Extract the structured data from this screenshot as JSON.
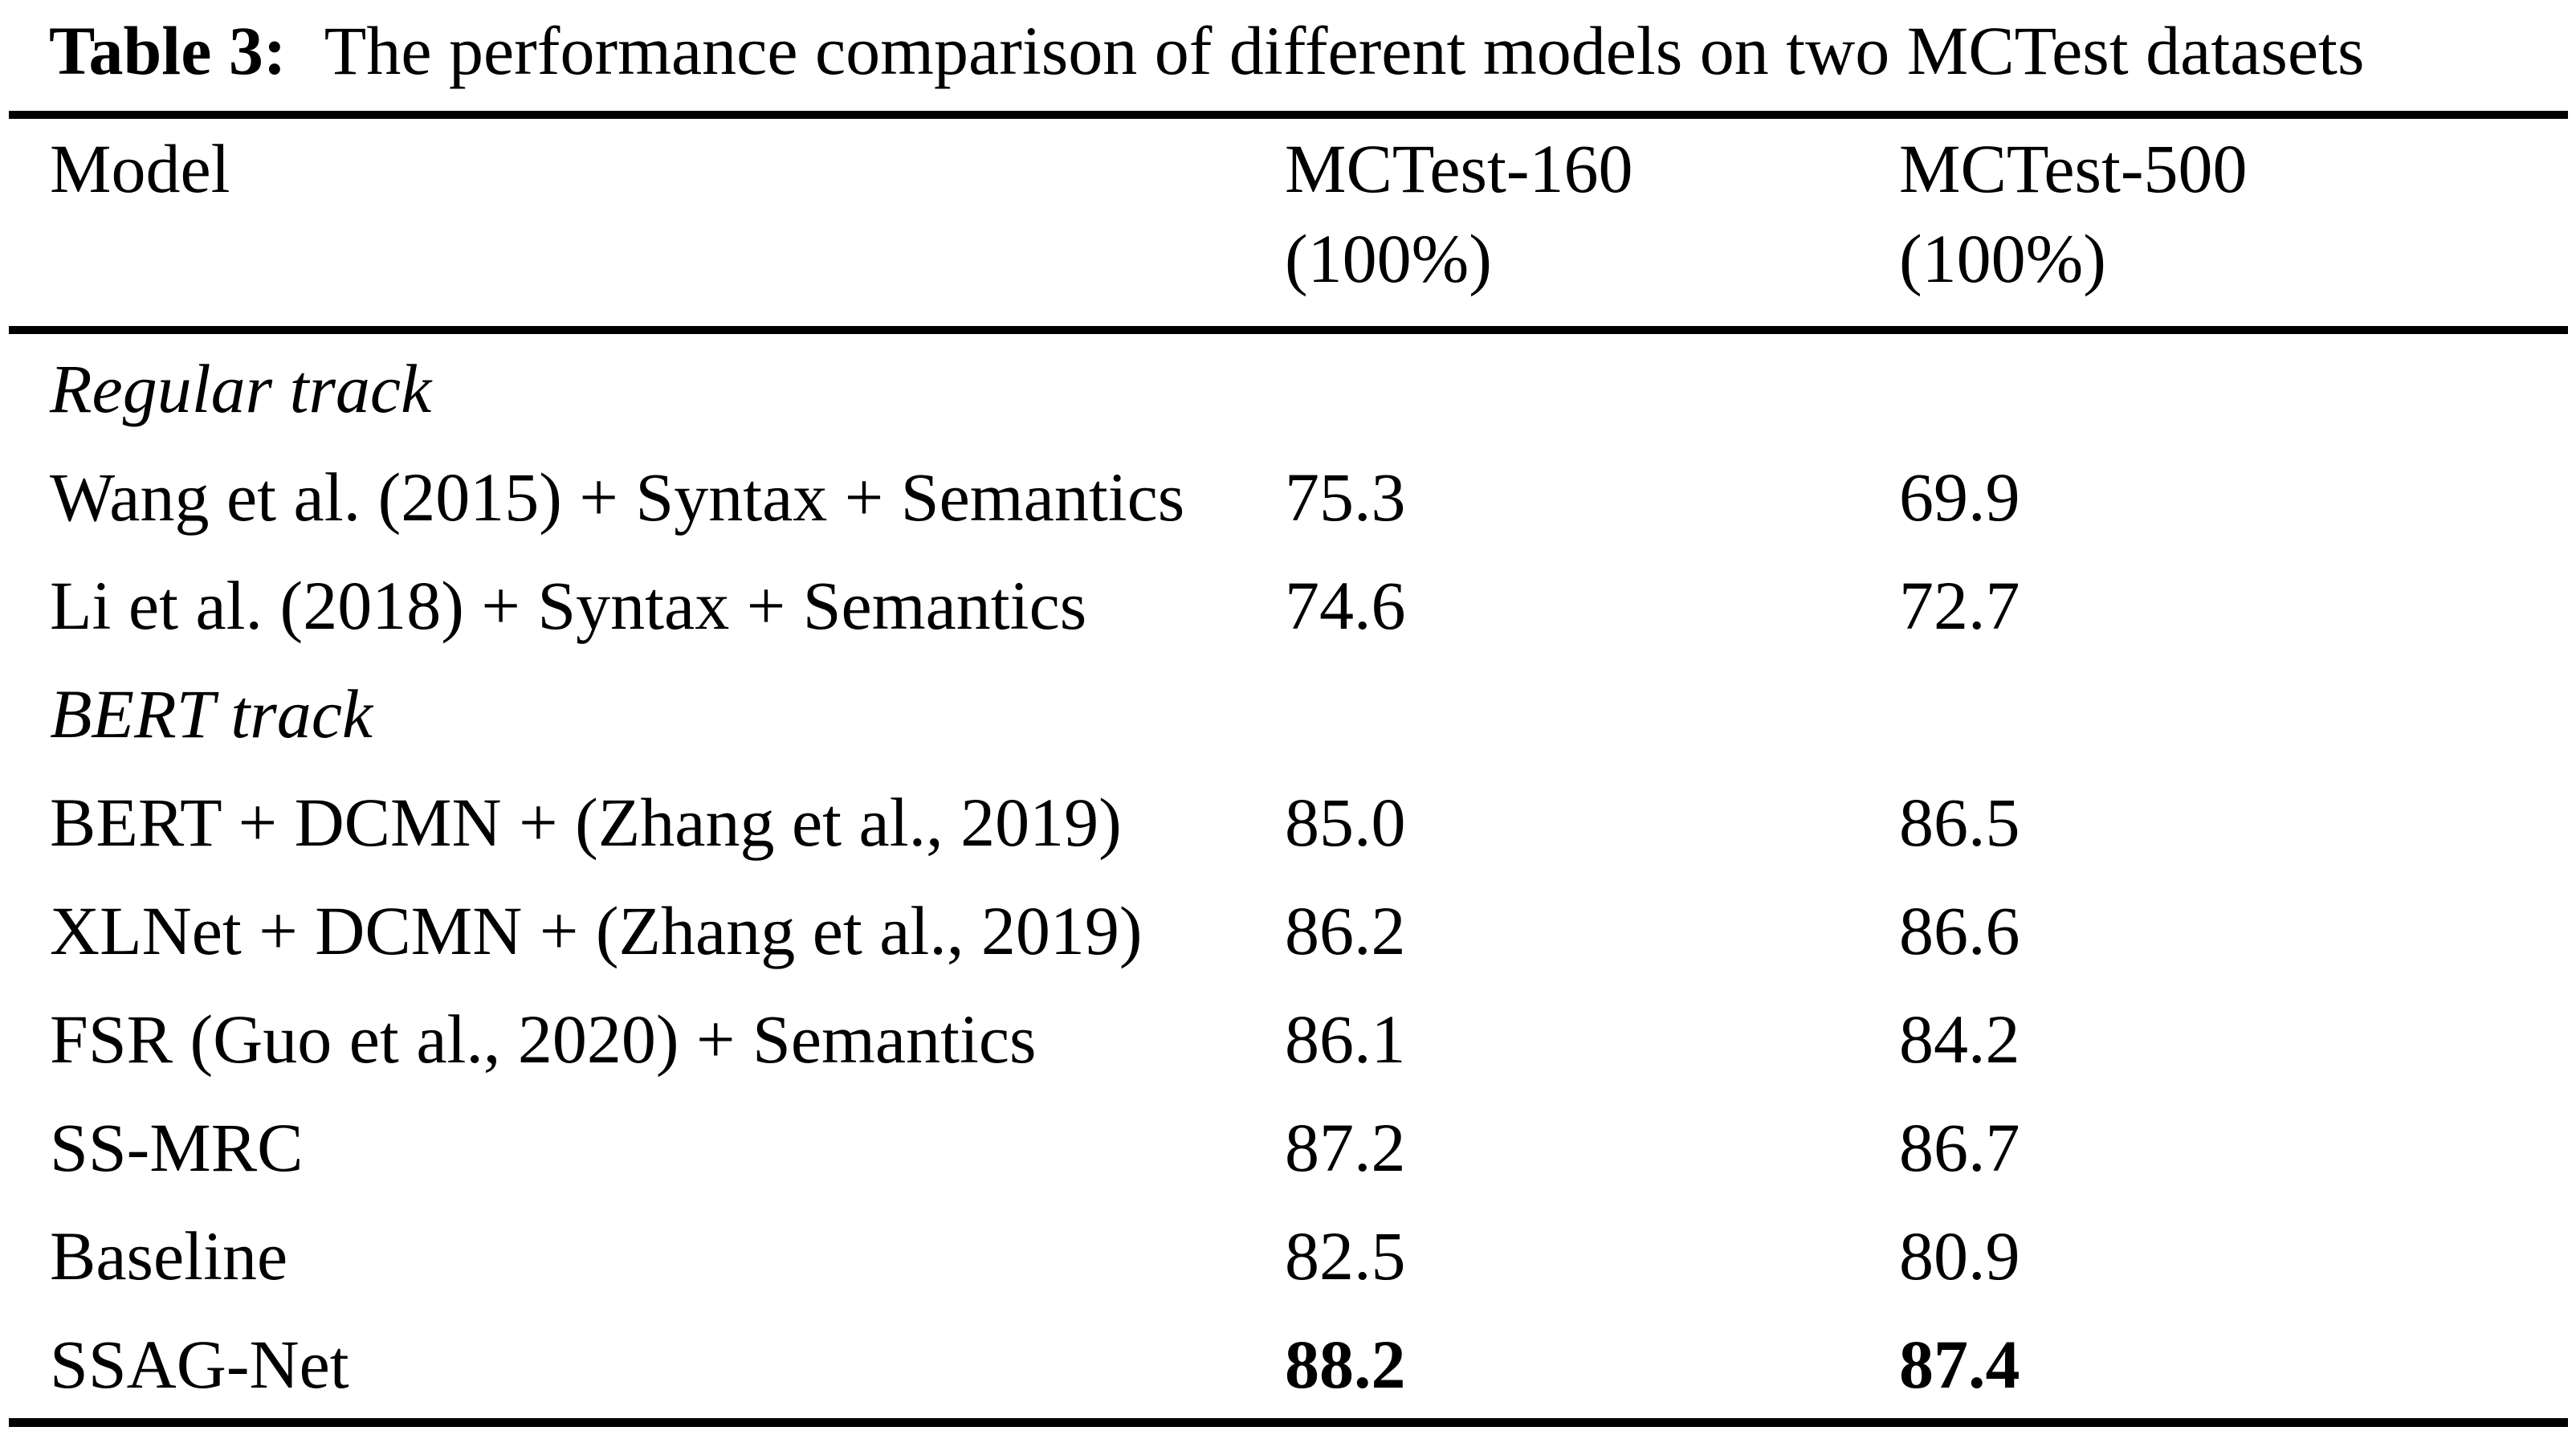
{
  "caption": {
    "label": "Table 3:",
    "text": "The performance comparison of different models on two MCTest datasets"
  },
  "header": {
    "model": "Model",
    "mctest160": {
      "line1": "MCTest-160",
      "line2": "(100%)"
    },
    "mctest500": {
      "line1": "MCTest-500",
      "line2": "(100%)"
    }
  },
  "table": {
    "rows": [
      {
        "model": "Regular track",
        "mctest160": "",
        "mctest500": ""
      },
      {
        "model": "Wang et al. (2015) + Syntax + Semantics",
        "mctest160": "75.3",
        "mctest500": "69.9"
      },
      {
        "model": "Li et al. (2018) + Syntax + Semantics",
        "mctest160": "74.6",
        "mctest500": "72.7"
      },
      {
        "model": "BERT track",
        "mctest160": "",
        "mctest500": ""
      },
      {
        "model": "BERT + DCMN + (Zhang et al., 2019)",
        "mctest160": "85.0",
        "mctest500": "86.5"
      },
      {
        "model": "XLNet + DCMN + (Zhang et al., 2019)",
        "mctest160": "86.2",
        "mctest500": "86.6"
      },
      {
        "model": "FSR (Guo et al., 2020) + Semantics",
        "mctest160": "86.1",
        "mctest500": "84.2"
      },
      {
        "model": "SS-MRC",
        "mctest160": "87.2",
        "mctest500": "86.7"
      },
      {
        "model": "Baseline",
        "mctest160": "82.5",
        "mctest500": "80.9"
      },
      {
        "model": "SSAG-Net",
        "mctest160": "88.2",
        "mctest500": "87.4"
      }
    ]
  },
  "colors": {
    "text": "#000000",
    "background": "#ffffff",
    "rule": "#000000"
  },
  "chart_data": {
    "type": "table",
    "title": "Table 3: The performance comparison of different models on two MCTest datasets",
    "categories": [
      "Wang et al. (2015) + Syntax + Semantics",
      "Li et al. (2018) + Syntax + Semantics",
      "BERT + DCMN + (Zhang et al., 2019)",
      "XLNet + DCMN + (Zhang et al., 2019)",
      "FSR (Guo et al., 2020) + Semantics",
      "SS-MRC",
      "Baseline",
      "SSAG-Net"
    ],
    "series": [
      {
        "name": "MCTest-160 (100%)",
        "values": [
          75.3,
          74.6,
          85.0,
          86.2,
          86.1,
          87.2,
          82.5,
          88.2
        ]
      },
      {
        "name": "MCTest-500 (100%)",
        "values": [
          69.9,
          72.7,
          86.5,
          86.6,
          84.2,
          86.7,
          80.9,
          87.4
        ]
      }
    ],
    "groups": {
      "Regular track": [
        0,
        1
      ],
      "BERT track": [
        2,
        3,
        4,
        5,
        6,
        7
      ]
    },
    "best_row": "SSAG-Net"
  }
}
